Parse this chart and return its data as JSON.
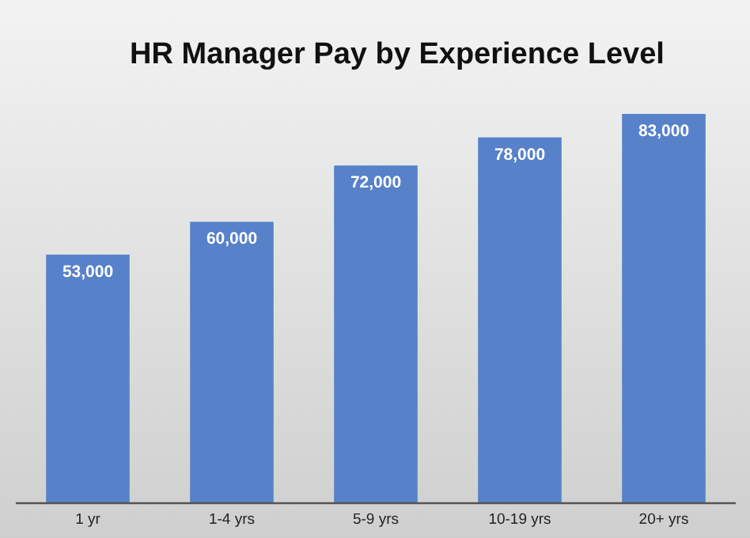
{
  "chart_data": {
    "type": "bar",
    "title": "HR Manager Pay by Experience Level",
    "categories": [
      "1 yr",
      "1-4 yrs",
      "5-9 yrs",
      "10-19 yrs",
      "20+ yrs"
    ],
    "values": [
      53000,
      60000,
      72000,
      78000,
      83000
    ],
    "color": "#5781c8",
    "value_labels": [
      "53,000",
      "60,000",
      "72,000",
      "78,000",
      "83,000"
    ]
  }
}
